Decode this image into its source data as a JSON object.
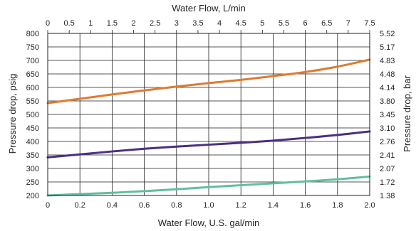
{
  "chart_data": {
    "type": "line",
    "title": "",
    "xlabel": "Water Flow, U.S. gal/min",
    "x2label": "Water Flow, L/min",
    "ylabel": "Pressure drop, psig",
    "y2label": "Pressure drop, bar",
    "xlim": [
      0,
      2.0
    ],
    "ylim": [
      200,
      800
    ],
    "x2lim": [
      0,
      7.5
    ],
    "xticks": [
      "0",
      "0.2",
      "0.4",
      "0.6",
      "0.8",
      "1.0",
      "1.2",
      "1.4",
      "1.6",
      "1.8",
      "2.0"
    ],
    "x2ticks": [
      "0",
      "0.5",
      "1",
      "1.5",
      "2",
      "2.5",
      "3",
      "3.5",
      "4",
      "4.5",
      "5",
      "5.5",
      "6",
      "6.5",
      "7",
      "7.5"
    ],
    "yticks": [
      "200",
      "250",
      "300",
      "350",
      "400",
      "450",
      "500",
      "550",
      "600",
      "650",
      "700",
      "750",
      "800"
    ],
    "y2ticks": [
      "1.38",
      "1.72",
      "2.07",
      "2.41",
      "2.76",
      "3.10",
      "3.45",
      "3.80",
      "4.14",
      "4.48",
      "4.83",
      "5.17",
      "5.52"
    ],
    "grid": true,
    "series": [
      {
        "color": "#e07a2e",
        "x": [
          0,
          0.2,
          0.4,
          0.6,
          0.8,
          1.0,
          1.2,
          1.4,
          1.6,
          1.8,
          2.0
        ],
        "y": [
          542,
          558,
          574,
          589,
          603,
          616,
          628,
          642,
          657,
          677,
          703
        ]
      },
      {
        "color": "#4a2f82",
        "x": [
          0,
          0.2,
          0.4,
          0.6,
          0.8,
          1.0,
          1.2,
          1.4,
          1.6,
          1.8,
          2.0
        ],
        "y": [
          341,
          352,
          363,
          373,
          381,
          388,
          395,
          403,
          413,
          424,
          437
        ]
      },
      {
        "color": "#5fbf9f",
        "x": [
          0,
          0.2,
          0.4,
          0.6,
          0.8,
          1.0,
          1.2,
          1.4,
          1.6,
          1.8,
          2.0
        ],
        "y": [
          200,
          205,
          210,
          216,
          223,
          231,
          238,
          245,
          252,
          260,
          270
        ]
      }
    ]
  }
}
